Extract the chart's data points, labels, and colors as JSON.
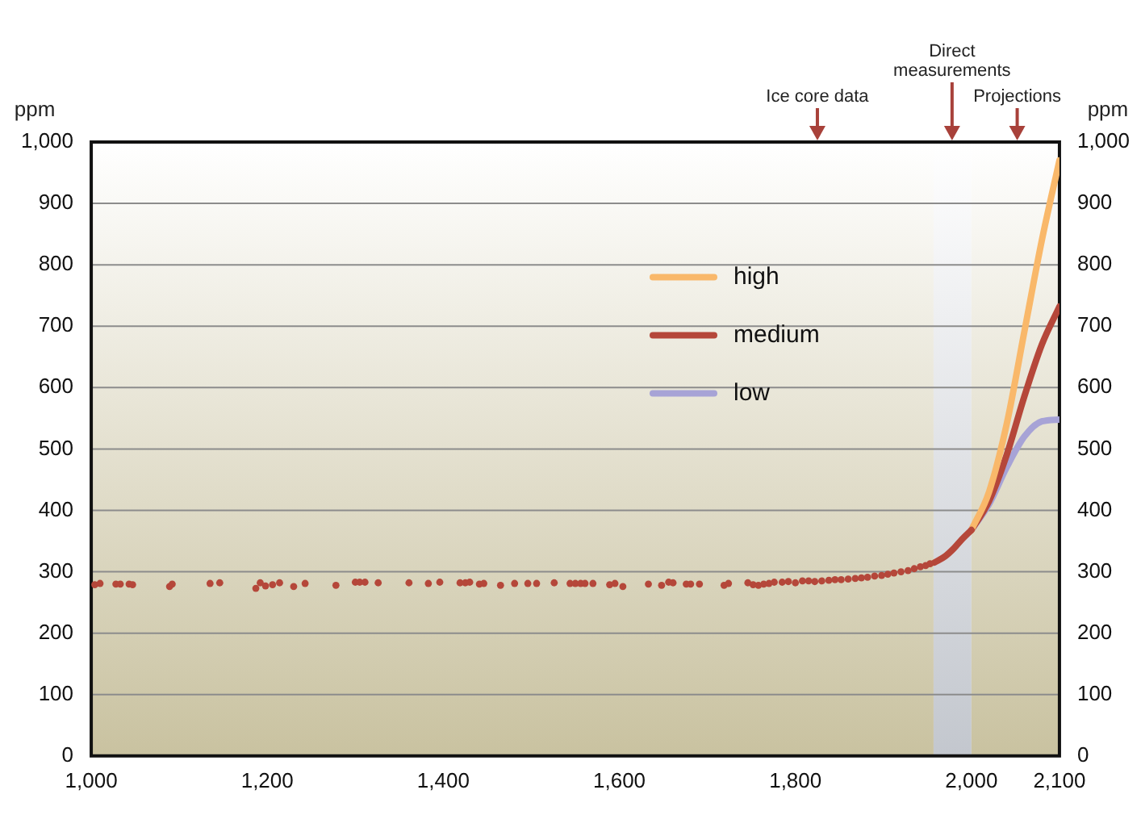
{
  "chart_data": {
    "type": "scatter",
    "ylabel": "ppm",
    "y2label": "ppm",
    "xlim": [
      1000,
      2100
    ],
    "xticks": [
      {
        "value": 1000,
        "label": "1,000"
      },
      {
        "value": 1200,
        "label": "1,200"
      },
      {
        "value": 1400,
        "label": "1,400"
      },
      {
        "value": 1600,
        "label": "1,600"
      },
      {
        "value": 1800,
        "label": "1,800"
      },
      {
        "value": 2000,
        "label": "2,000"
      },
      {
        "value": 2100,
        "label": "2,100"
      }
    ],
    "ylim": [
      0,
      1000
    ],
    "yticks": [
      0,
      100,
      200,
      300,
      400,
      500,
      600,
      700,
      800,
      900,
      {
        "value": 1000,
        "label": "1,000"
      }
    ],
    "y2lim": [
      0,
      1000
    ],
    "y2ticks": [
      0,
      100,
      200,
      300,
      400,
      500,
      600,
      700,
      800,
      900,
      {
        "value": 1000,
        "label": "1,000"
      }
    ],
    "grid": "y",
    "legend": "top",
    "bands": [
      {
        "axis": "x",
        "from": 1000,
        "to": 1957,
        "color": "#c9c2a0"
      },
      {
        "axis": "x",
        "from": 1957,
        "to": 2000,
        "color": "#c3c7ce"
      },
      {
        "axis": "x",
        "from": 2000,
        "to": 2100,
        "color": "#c9c2a0"
      }
    ],
    "annotations": [
      {
        "text": "Ice core data",
        "x": 1825,
        "y": 1000
      },
      {
        "text": "Direct measurements",
        "x": 1978,
        "y": 1000
      },
      {
        "text": "Projections",
        "x": 2052,
        "y": 1000
      }
    ],
    "series": [
      {
        "marker": "circle",
        "color": "#b5473a",
        "x": [
          1004,
          1010,
          1028,
          1033,
          1043,
          1047,
          1089,
          1092,
          1135,
          1146,
          1187,
          1192,
          1198,
          1206,
          1214,
          1230,
          1243,
          1278,
          1300,
          1305,
          1311,
          1326,
          1361,
          1383,
          1396,
          1419,
          1425,
          1430,
          1441,
          1446,
          1465,
          1481,
          1496,
          1506,
          1526,
          1544,
          1550,
          1556,
          1561,
          1570,
          1589,
          1595,
          1604,
          1633,
          1648,
          1656,
          1661,
          1676,
          1681,
          1691,
          1719,
          1724,
          1746,
          1752,
          1758,
          1764,
          1770,
          1776,
          1785,
          1792,
          1800,
          1808,
          1815,
          1822,
          1830,
          1838,
          1845,
          1852,
          1860,
          1868,
          1875,
          1882,
          1890,
          1898,
          1905,
          1912,
          1920,
          1928,
          1935,
          1942,
          1948,
          1953
        ],
        "values": [
          279,
          281,
          280,
          280,
          280,
          279,
          276,
          280,
          281,
          282,
          273,
          282,
          277,
          279,
          282,
          276,
          281,
          278,
          283,
          283,
          283,
          282,
          282,
          281,
          283,
          282,
          282,
          283,
          280,
          281,
          278,
          281,
          281,
          281,
          282,
          281,
          281,
          281,
          281,
          281,
          279,
          281,
          276,
          280,
          278,
          283,
          282,
          280,
          280,
          280,
          278,
          281,
          282,
          279,
          278,
          280,
          281,
          283,
          283,
          284,
          282,
          285,
          285,
          284,
          285,
          286,
          287,
          287,
          288,
          289,
          290,
          291,
          293,
          294,
          296,
          298,
          300,
          302,
          305,
          308,
          310,
          313
        ]
      },
      {
        "type": "line",
        "color": "#b5473a",
        "x": [
          1958,
          1970,
          1980,
          1990,
          2000
        ],
        "values": [
          315,
          325,
          338,
          354,
          368
        ]
      },
      {
        "type": "line",
        "name": "high",
        "color": "#f9b86a",
        "x": [
          2000,
          2020,
          2040,
          2060,
          2080,
          2100
        ],
        "values": [
          368,
          430,
          540,
          690,
          840,
          970
        ]
      },
      {
        "type": "line",
        "name": "medium",
        "color": "#b5473a",
        "x": [
          2000,
          2020,
          2040,
          2060,
          2080,
          2100
        ],
        "values": [
          368,
          415,
          490,
          585,
          670,
          732
        ]
      },
      {
        "type": "line",
        "name": "low",
        "color": "#a7a3d6",
        "x": [
          2000,
          2020,
          2040,
          2060,
          2080,
          2100
        ],
        "values": [
          368,
          410,
          470,
          520,
          545,
          548
        ]
      }
    ]
  }
}
